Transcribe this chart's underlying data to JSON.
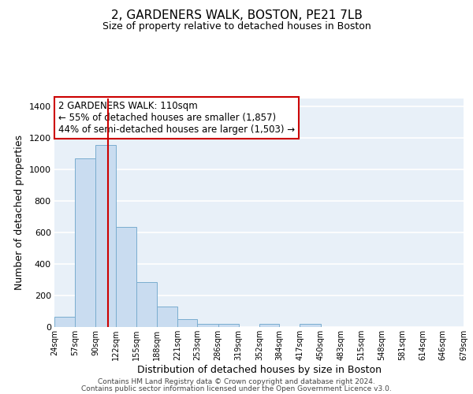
{
  "title": "2, GARDENERS WALK, BOSTON, PE21 7LB",
  "subtitle": "Size of property relative to detached houses in Boston",
  "xlabel": "Distribution of detached houses by size in Boston",
  "ylabel": "Number of detached properties",
  "bar_color": "#c9dcf0",
  "bar_edge_color": "#7aadcf",
  "background_color": "#e8f0f8",
  "grid_color": "#ffffff",
  "vline_x": 110,
  "vline_color": "#cc0000",
  "annotation_title": "2 GARDENERS WALK: 110sqm",
  "annotation_line1": "← 55% of detached houses are smaller (1,857)",
  "annotation_line2": "44% of semi-detached houses are larger (1,503) →",
  "annotation_box_color": "#ffffff",
  "annotation_box_edge": "#cc0000",
  "bin_edges": [
    24,
    57,
    90,
    122,
    155,
    188,
    221,
    253,
    286,
    319,
    352,
    384,
    417,
    450,
    483,
    515,
    548,
    581,
    614,
    646,
    679
  ],
  "bin_counts": [
    65,
    1070,
    1155,
    635,
    285,
    130,
    48,
    20,
    20,
    0,
    20,
    0,
    20,
    0,
    0,
    0,
    0,
    0,
    0,
    0
  ],
  "ylim": [
    0,
    1450
  ],
  "yticks": [
    0,
    200,
    400,
    600,
    800,
    1000,
    1200,
    1400
  ],
  "footer_line1": "Contains HM Land Registry data © Crown copyright and database right 2024.",
  "footer_line2": "Contains public sector information licensed under the Open Government Licence v3.0."
}
